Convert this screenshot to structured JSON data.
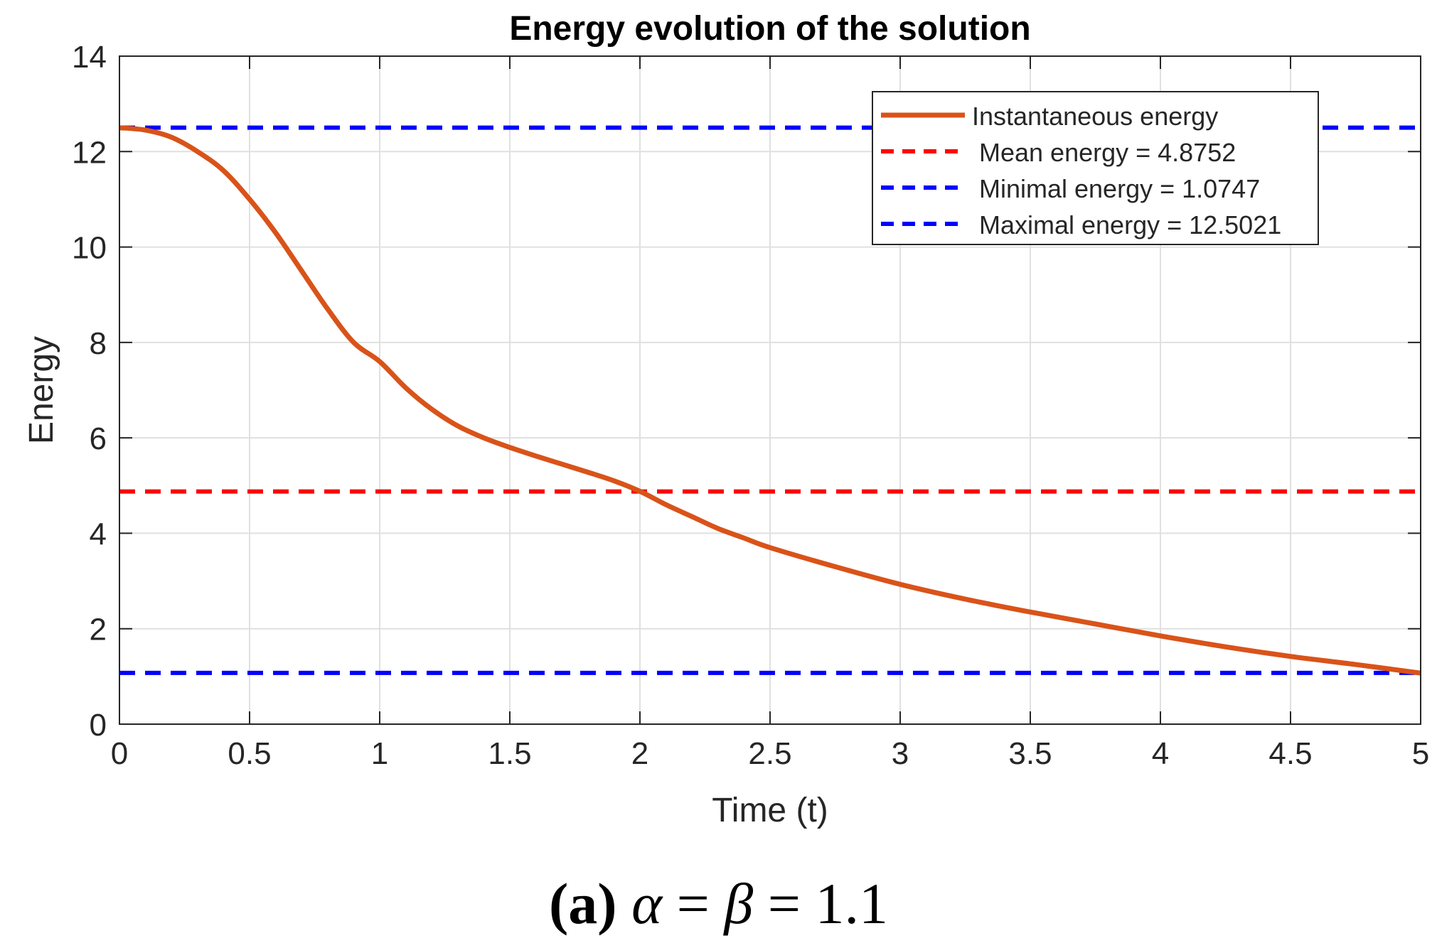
{
  "chart_data": {
    "type": "line",
    "title": "Energy evolution of the solution",
    "xlabel": "Time (t)",
    "ylabel": "Energy",
    "xlim": [
      0,
      5
    ],
    "ylim": [
      0,
      14
    ],
    "xticks": [
      0,
      0.5,
      1,
      1.5,
      2,
      2.5,
      3,
      3.5,
      4,
      4.5,
      5
    ],
    "xtick_labels": [
      "0",
      "0.5",
      "1",
      "1.5",
      "2",
      "2.5",
      "3",
      "3.5",
      "4",
      "4.5",
      "5"
    ],
    "yticks": [
      0,
      2,
      4,
      6,
      8,
      10,
      12,
      14
    ],
    "ytick_labels": [
      "0",
      "2",
      "4",
      "6",
      "8",
      "10",
      "12",
      "14"
    ],
    "grid": true,
    "legend_position": "top-right",
    "series": [
      {
        "name": "Instantaneous energy",
        "style": "solid",
        "color": "#D95319",
        "x": [
          0,
          0.1,
          0.2,
          0.3,
          0.4,
          0.5,
          0.6,
          0.7,
          0.8,
          0.9,
          1.0,
          1.1,
          1.2,
          1.3,
          1.4,
          1.5,
          1.6,
          1.7,
          1.8,
          1.9,
          2.0,
          2.1,
          2.2,
          2.3,
          2.4,
          2.5,
          2.75,
          3.0,
          3.25,
          3.5,
          3.75,
          4.0,
          4.25,
          4.5,
          4.75,
          5.0
        ],
        "y": [
          12.5,
          12.45,
          12.3,
          12.0,
          11.6,
          11.0,
          10.3,
          9.5,
          8.7,
          8.0,
          7.6,
          7.05,
          6.6,
          6.25,
          6.0,
          5.8,
          5.62,
          5.45,
          5.28,
          5.1,
          4.88,
          4.6,
          4.35,
          4.1,
          3.9,
          3.7,
          3.3,
          2.93,
          2.62,
          2.35,
          2.1,
          1.85,
          1.62,
          1.42,
          1.25,
          1.07
        ]
      },
      {
        "name": "Mean energy = 4.8752",
        "style": "dashed",
        "color": "#FF0000",
        "x": [
          0,
          5
        ],
        "y": [
          4.8752,
          4.8752
        ]
      },
      {
        "name": "Minimal energy = 1.0747",
        "style": "dashed",
        "color": "#0000FF",
        "x": [
          0,
          5
        ],
        "y": [
          1.0747,
          1.0747
        ]
      },
      {
        "name": "Maximal energy = 12.5021",
        "style": "dashed",
        "color": "#0000FF",
        "x": [
          0,
          5
        ],
        "y": [
          12.5021,
          12.5021
        ]
      }
    ]
  },
  "caption": {
    "label": "(a)",
    "math": {
      "alpha": "α",
      "eq1": "=",
      "beta": "β",
      "eq2": "=",
      "value": "1.1"
    }
  }
}
